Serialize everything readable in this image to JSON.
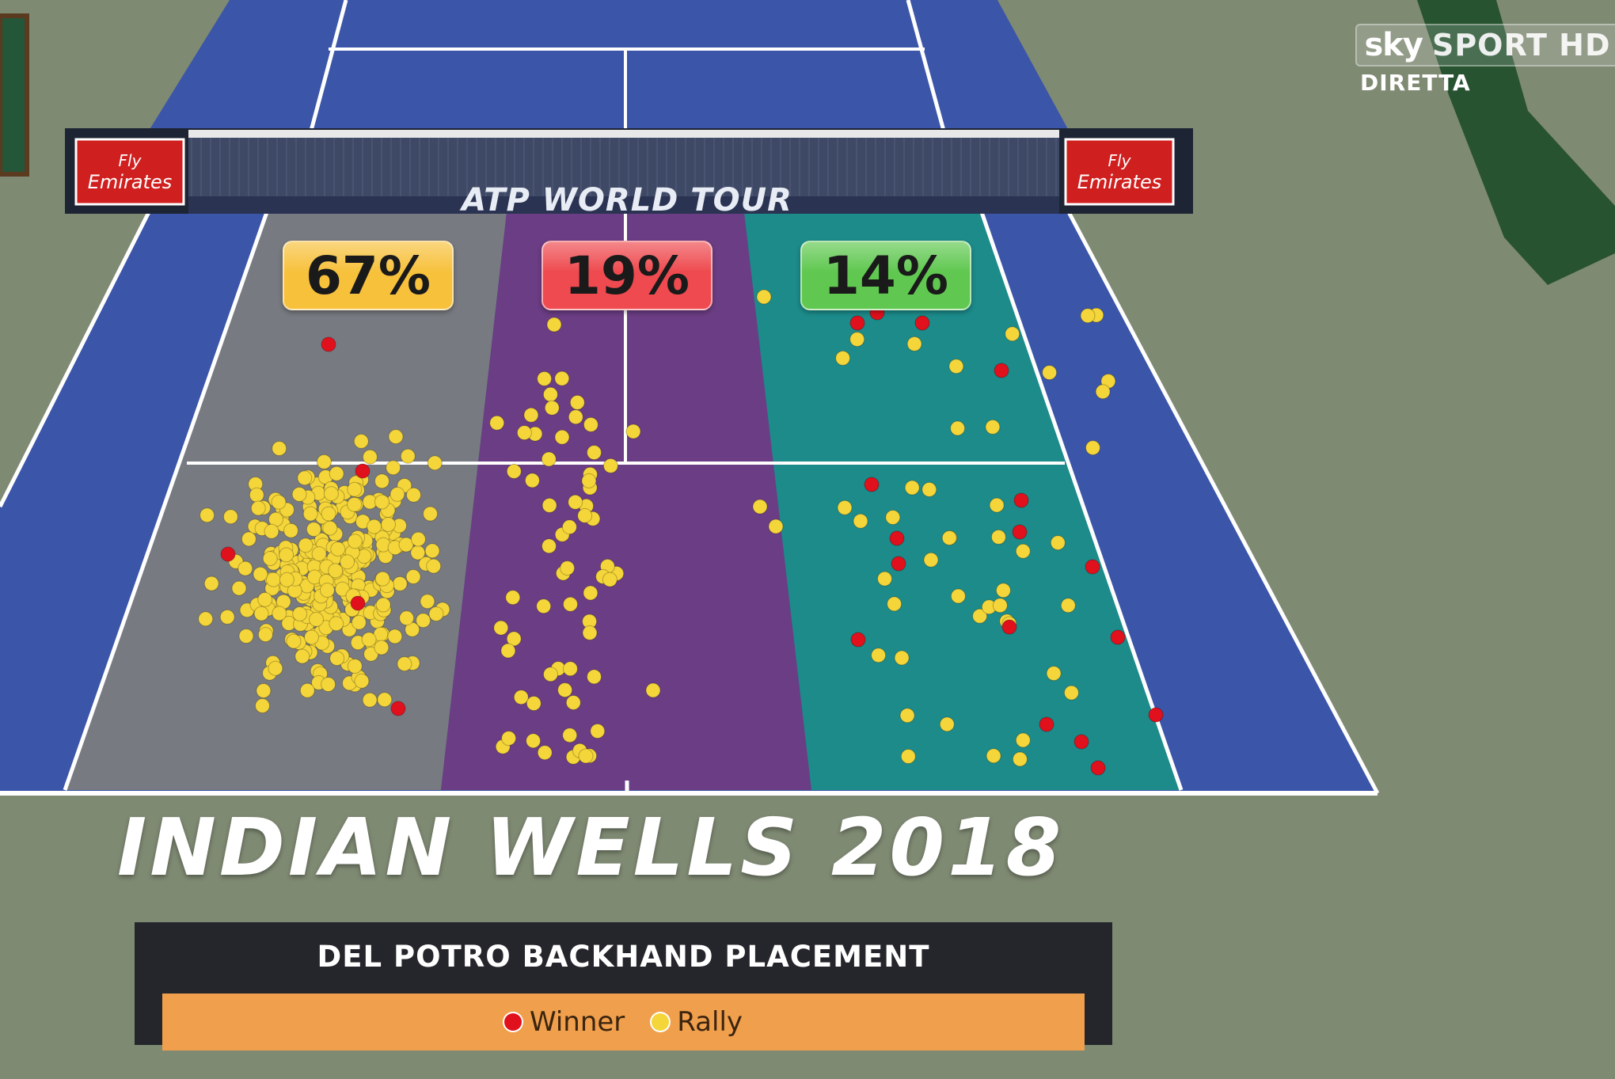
{
  "broadcaster": {
    "logo_text_1": "sky",
    "logo_text_2": "SPORT HD",
    "status": "DIRETTA"
  },
  "net": {
    "banner": "ATP WORLD TOUR",
    "sponsor_line1": "Fly",
    "sponsor_line2": "Emirates"
  },
  "zones": [
    {
      "label": "67%",
      "badge_color": "#f7c13c",
      "zone_color": "#777a80"
    },
    {
      "label": "19%",
      "badge_color": "#ee4a4f",
      "zone_color": "#6b3d84"
    },
    {
      "label": "14%",
      "badge_color": "#60c850",
      "zone_color": "#1c8b8a"
    }
  ],
  "title": "INDIAN WELLS 2018",
  "panel": {
    "title": "DEL POTRO BACKHAND PLACEMENT",
    "legend": [
      {
        "label": "Winner",
        "color": "#e0101c"
      },
      {
        "label": "Rally",
        "color": "#f4d53a"
      }
    ]
  },
  "colors": {
    "court_blue": "#3b55a8",
    "court_line": "#ffffff",
    "surround": "#7f8a73",
    "winner": "#e0101c",
    "rally": "#f4d53a"
  }
}
